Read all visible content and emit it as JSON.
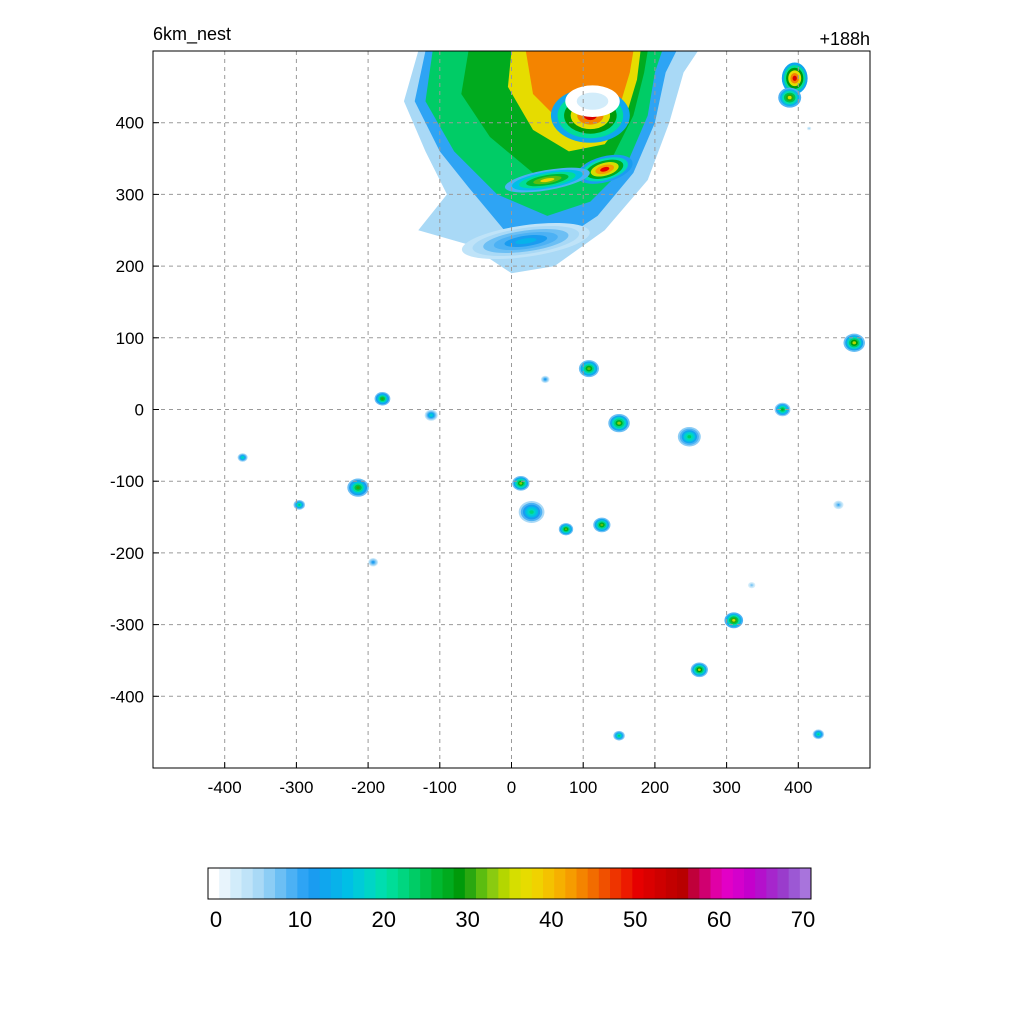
{
  "title_left": "6km_nest",
  "title_right": "+188h",
  "chart_data": {
    "type": "heatmap",
    "title": "6km_nest",
    "annotation": "+188h",
    "xlim": [
      -500,
      500
    ],
    "ylim": [
      -500,
      500
    ],
    "xticks": [
      -400,
      -300,
      -200,
      -100,
      0,
      100,
      200,
      300,
      400
    ],
    "yticks": [
      400,
      300,
      200,
      100,
      0,
      -100,
      -200,
      -300,
      -400
    ],
    "grid": true,
    "colorbar": {
      "min": 0,
      "max": 70,
      "ticks": [
        0,
        10,
        20,
        30,
        40,
        50,
        60,
        70
      ],
      "colors": [
        "#ffffff",
        "#e8f4fc",
        "#d2ecfa",
        "#bfe3f8",
        "#a9d9f6",
        "#8ccdf5",
        "#6cbff4",
        "#4cb1f4",
        "#2ea4f4",
        "#1a9cf0",
        "#10a6ee",
        "#08b2ea",
        "#00bfe6",
        "#00cbd8",
        "#00d5c6",
        "#00ddb0",
        "#00dd98",
        "#00d680",
        "#00cc66",
        "#00c24a",
        "#00b830",
        "#00ab1e",
        "#009a0a",
        "#2aa810",
        "#5cbd10",
        "#8acb10",
        "#b4d600",
        "#d6de00",
        "#e6dc00",
        "#f0d200",
        "#f4c200",
        "#f6b000",
        "#f69c00",
        "#f48400",
        "#f26c00",
        "#f05000",
        "#ee3400",
        "#ec1a00",
        "#e60000",
        "#da0000",
        "#ce0000",
        "#c20000",
        "#b80000",
        "#c0003a",
        "#d00070",
        "#e000a6",
        "#e200c6",
        "#d400cc",
        "#c400cc",
        "#b410cc",
        "#a626cc",
        "#9a3ccc",
        "#9c58d4",
        "#a874dc"
      ]
    },
    "storm_field": {
      "description_levels": "contoured reflectivity values in data units",
      "features": [
        {
          "kind": "rainband",
          "x": -40,
          "y": 380,
          "peak": 45
        },
        {
          "kind": "eyewall",
          "x": 110,
          "y": 420,
          "peak": 52
        },
        {
          "kind": "band",
          "x": 130,
          "y": 330,
          "peak": 50
        },
        {
          "kind": "outer",
          "x": 20,
          "y": 240,
          "peak": 15
        },
        {
          "kind": "cell",
          "x": 395,
          "y": 465,
          "peak": 52
        },
        {
          "kind": "cell",
          "x": 388,
          "y": 435,
          "peak": 35
        }
      ]
    },
    "cells": [
      {
        "x": 478,
        "y": 93,
        "r": 15,
        "peak": 34
      },
      {
        "x": 108,
        "y": 57,
        "r": 14,
        "peak": 32
      },
      {
        "x": 47,
        "y": 42,
        "r": 6,
        "peak": 12
      },
      {
        "x": -180,
        "y": 15,
        "r": 11,
        "peak": 30
      },
      {
        "x": -112,
        "y": -8,
        "r": 9,
        "peak": 18
      },
      {
        "x": 150,
        "y": -19,
        "r": 15,
        "peak": 33
      },
      {
        "x": 248,
        "y": -38,
        "r": 16,
        "peak": 24
      },
      {
        "x": 378,
        "y": 0,
        "r": 11,
        "peak": 28
      },
      {
        "x": -375,
        "y": -67,
        "r": 7,
        "peak": 20
      },
      {
        "x": -214,
        "y": -109,
        "r": 15,
        "peak": 30
      },
      {
        "x": 13,
        "y": -103,
        "r": 12,
        "peak": 33
      },
      {
        "x": -296,
        "y": -133,
        "r": 8,
        "peak": 24
      },
      {
        "x": 28,
        "y": -143,
        "r": 18,
        "peak": 22
      },
      {
        "x": 76,
        "y": -167,
        "r": 10,
        "peak": 32
      },
      {
        "x": 126,
        "y": -161,
        "r": 12,
        "peak": 32
      },
      {
        "x": 456,
        "y": -133,
        "r": 7,
        "peak": 10
      },
      {
        "x": -193,
        "y": -213,
        "r": 7,
        "peak": 12
      },
      {
        "x": 335,
        "y": -245,
        "r": 5,
        "peak": 8
      },
      {
        "x": 310,
        "y": -294,
        "r": 13,
        "peak": 36
      },
      {
        "x": 262,
        "y": -363,
        "r": 12,
        "peak": 34
      },
      {
        "x": 150,
        "y": -455,
        "r": 8,
        "peak": 24
      },
      {
        "x": 428,
        "y": -453,
        "r": 8,
        "peak": 22
      },
      {
        "x": 415,
        "y": 392,
        "r": 3,
        "peak": 6
      }
    ]
  }
}
